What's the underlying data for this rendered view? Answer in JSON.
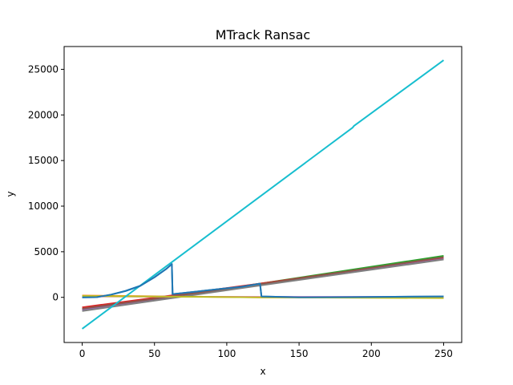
{
  "chart_data": {
    "type": "line",
    "title": "MTrack Ransac",
    "xlabel": "x",
    "ylabel": "y",
    "xlim": [
      -12.5,
      262.5
    ],
    "ylim": [
      -4950,
      27500
    ],
    "xticks": [
      0,
      50,
      100,
      150,
      200,
      250
    ],
    "yticks": [
      0,
      5000,
      10000,
      15000,
      20000,
      25000
    ],
    "grid": false,
    "legend": "none",
    "series": [
      {
        "color": "#1f77b4",
        "points": [
          [
            0,
            0
          ],
          [
            10,
            20
          ],
          [
            20,
            300
          ],
          [
            30,
            700
          ],
          [
            40,
            1250
          ],
          [
            50,
            2200
          ],
          [
            58,
            3100
          ],
          [
            62,
            3650
          ],
          [
            62.5,
            500
          ],
          [
            62.5,
            350
          ],
          [
            80,
            650
          ],
          [
            100,
            1000
          ],
          [
            110,
            1150
          ],
          [
            123,
            1500
          ],
          [
            124,
            100
          ],
          [
            150,
            10
          ],
          [
            187,
            30
          ],
          [
            250,
            100
          ]
        ]
      },
      {
        "color": "#ff7f0e",
        "points": [
          [
            0,
            200
          ],
          [
            60,
            100
          ],
          [
            125,
            0
          ],
          [
            187,
            0
          ],
          [
            250,
            -50
          ]
        ]
      },
      {
        "color": "#2ca02c",
        "points": [
          [
            0,
            -1300
          ],
          [
            125,
            1550
          ],
          [
            250,
            4550
          ]
        ]
      },
      {
        "color": "#d62728",
        "points": [
          [
            0,
            -1100
          ],
          [
            125,
            1550
          ],
          [
            250,
            4300
          ]
        ]
      },
      {
        "color": "#9467bd",
        "points": [
          [
            0,
            -1400
          ],
          [
            125,
            1400
          ],
          [
            250,
            4200
          ]
        ]
      },
      {
        "color": "#8c564b",
        "points": [
          [
            0,
            -1250
          ],
          [
            125,
            1480
          ],
          [
            250,
            4400
          ]
        ]
      },
      {
        "color": "#e377c2",
        "points": [
          [
            0,
            100
          ],
          [
            125,
            50
          ],
          [
            250,
            50
          ]
        ]
      },
      {
        "color": "#7f7f7f",
        "points": [
          [
            0,
            -1500
          ],
          [
            125,
            1350
          ],
          [
            250,
            4150
          ]
        ]
      },
      {
        "color": "#bcbd22",
        "points": [
          [
            0,
            150
          ],
          [
            125,
            0
          ],
          [
            250,
            -80
          ]
        ]
      },
      {
        "color": "#17becf",
        "points": [
          [
            0,
            -3450
          ],
          [
            187,
            18600
          ],
          [
            188,
            18800
          ],
          [
            250,
            26000
          ]
        ]
      },
      {
        "color": "#1f77b4",
        "points": [
          [
            0,
            0
          ],
          [
            10,
            20
          ],
          [
            20,
            300
          ],
          [
            30,
            700
          ],
          [
            40,
            1250
          ],
          [
            50,
            2200
          ],
          [
            58,
            3100
          ],
          [
            62,
            3650
          ],
          [
            62.5,
            500
          ],
          [
            62.5,
            350
          ],
          [
            80,
            650
          ],
          [
            100,
            1000
          ],
          [
            110,
            1150
          ],
          [
            123,
            1500
          ],
          [
            124,
            100
          ],
          [
            150,
            10
          ],
          [
            187,
            30
          ],
          [
            250,
            100
          ]
        ]
      }
    ]
  }
}
